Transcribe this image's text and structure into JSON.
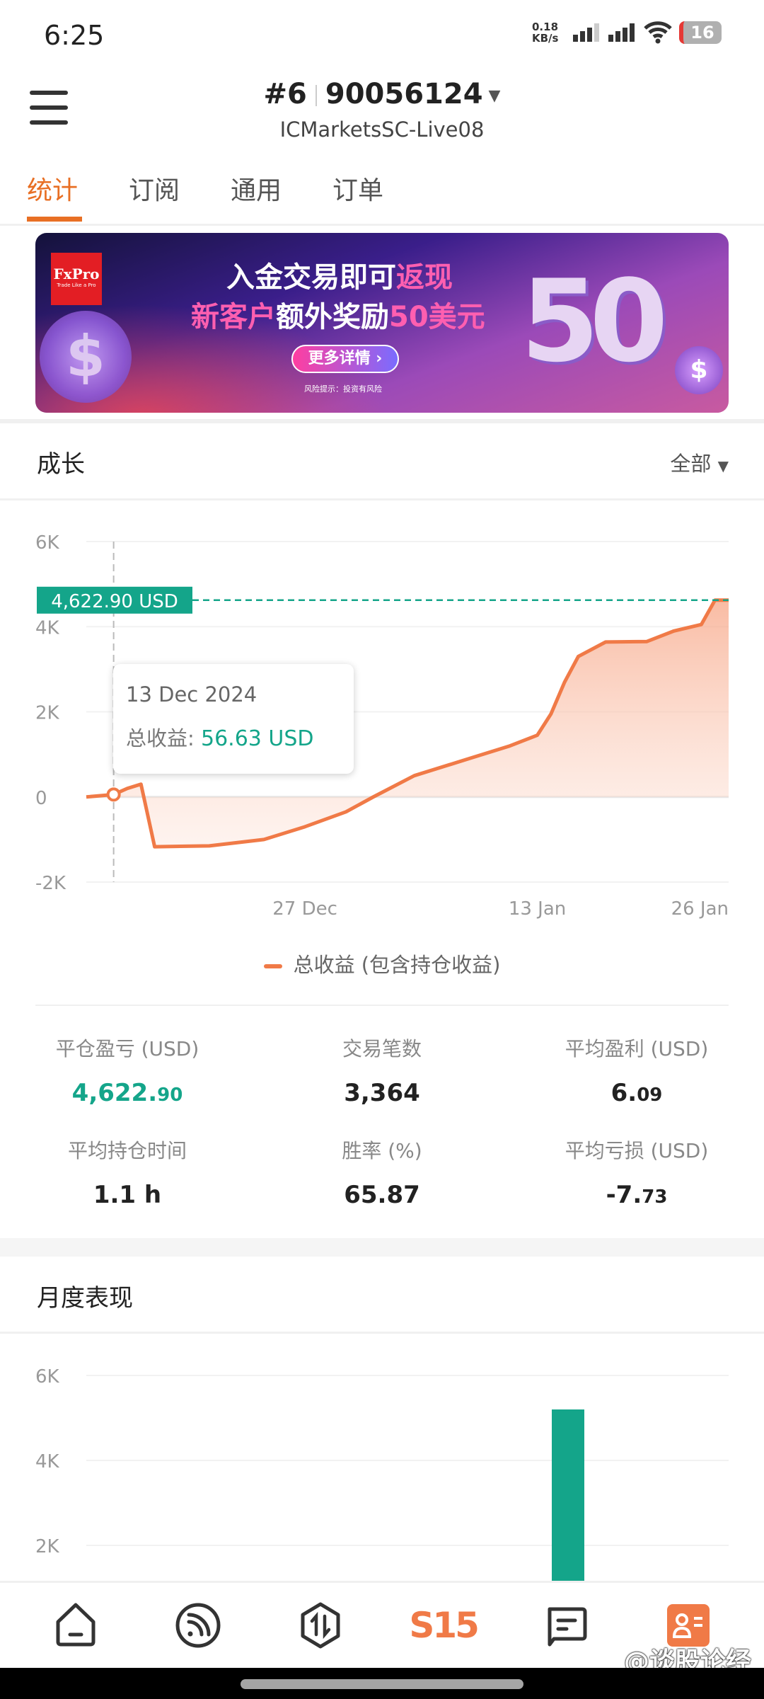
{
  "status": {
    "time": "6:25",
    "net_speed": "0.18 KB/s",
    "battery": "16"
  },
  "header": {
    "account_index": "#6",
    "account_number": "90056124",
    "server": "ICMarketsSC-Live08"
  },
  "tabs": [
    {
      "label": "统计",
      "active": true
    },
    {
      "label": "订阅"
    },
    {
      "label": "通用"
    },
    {
      "label": "订单"
    }
  ],
  "banner": {
    "brand": "FxPro",
    "brand_tagline": "Trade Like a Pro",
    "line1": "入金交易即可",
    "line1_highlight": "返现",
    "line2_highlight": "新客户",
    "line2": "额外奖励",
    "line2_amount": "50美元",
    "button": "更多详情 ›",
    "risk_note": "风险提示：投资有风险",
    "big_number": "50"
  },
  "growth": {
    "title": "成长",
    "range": "全部",
    "current_label": "4,622.90 USD",
    "tooltip": {
      "date": "13 Dec 2024",
      "label": "总收益:",
      "value": "56.63 USD"
    },
    "legend": "总收益 (包含持仓收益)"
  },
  "stats": [
    {
      "label": "平仓盈亏 (USD)",
      "int": "4,622.",
      "dec": "90",
      "color": "#14a58a"
    },
    {
      "label": "交易笔数",
      "int": "3,364",
      "dec": ""
    },
    {
      "label": "平均盈利 (USD)",
      "int": "6.",
      "dec": "09"
    },
    {
      "label": "平均持仓时间",
      "int": "1.1 h",
      "dec": ""
    },
    {
      "label": "胜率 (%)",
      "int": "65.87",
      "dec": ""
    },
    {
      "label": "平均亏损 (USD)",
      "int": "-7.",
      "dec": "73"
    }
  ],
  "monthly": {
    "title": "月度表现"
  },
  "nav": [
    {
      "icon": "home-icon"
    },
    {
      "icon": "feed-icon"
    },
    {
      "icon": "trade-icon"
    },
    {
      "label": "S15",
      "icon": "s15-logo"
    },
    {
      "icon": "message-icon"
    },
    {
      "icon": "profile-card-icon",
      "active": true
    }
  ],
  "watermark": "@谈股论经",
  "colors": {
    "accent": "#e86f24",
    "line": "#f07a47",
    "positive": "#14a58a"
  },
  "chart_data": [
    {
      "type": "area",
      "title": "成长",
      "yticks": [
        "6K",
        "4K",
        "2K",
        "0",
        "-2K"
      ],
      "ylim": [
        -2000,
        6000
      ],
      "xticks": [
        "27 Dec",
        "13 Jan",
        "26 Jan"
      ],
      "xlim": [
        "2024-12-11",
        "2025-01-27"
      ],
      "grid": true,
      "legend": "bottom",
      "series": [
        {
          "name": "总收益 (包含持仓收益)",
          "points": [
            [
              "2024-12-11",
              0
            ],
            [
              "2024-12-13",
              56.63
            ],
            [
              "2024-12-14",
              200
            ],
            [
              "2024-12-15",
              300
            ],
            [
              "2024-12-16",
              -1170
            ],
            [
              "2024-12-20",
              -1150
            ],
            [
              "2024-12-24",
              -1000
            ],
            [
              "2024-12-27",
              -700
            ],
            [
              "2024-12-30",
              -350
            ],
            [
              "2025-01-01",
              0
            ],
            [
              "2025-01-04",
              500
            ],
            [
              "2025-01-08",
              900
            ],
            [
              "2025-01-11",
              1200
            ],
            [
              "2025-01-13",
              1450
            ],
            [
              "2025-01-14",
              1950
            ],
            [
              "2025-01-15",
              2700
            ],
            [
              "2025-01-16",
              3300
            ],
            [
              "2025-01-18",
              3640
            ],
            [
              "2025-01-21",
              3650
            ],
            [
              "2025-01-23",
              3900
            ],
            [
              "2025-01-25",
              4050
            ],
            [
              "2025-01-26",
              4622.9
            ],
            [
              "2025-01-27",
              4622.9
            ]
          ]
        }
      ],
      "highlight": {
        "date": "2024-12-13",
        "value": 56.63
      },
      "current_value": 4622.9
    },
    {
      "type": "bar",
      "title": "月度表现",
      "yticks": [
        "6K",
        "4K",
        "2K"
      ],
      "ylim": [
        0,
        6000
      ],
      "grid": true,
      "values": [
        5200
      ],
      "bar_color": "#14a58a"
    }
  ]
}
